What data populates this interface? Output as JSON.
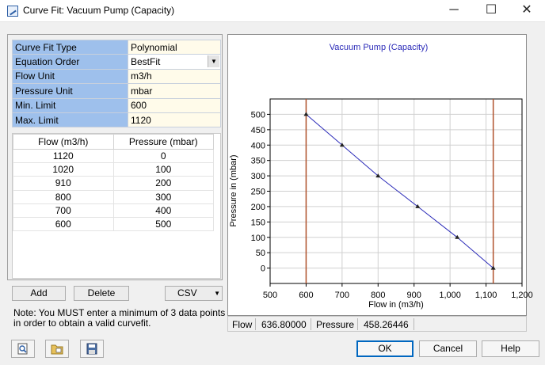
{
  "window": {
    "title": "Curve Fit: Vacuum Pump (Capacity)",
    "minimize_glyph": "─",
    "maximize_glyph": "☐",
    "close_glyph": "✕"
  },
  "properties": [
    {
      "key": "Curve Fit Type",
      "value": "Polynomial"
    },
    {
      "key": "Equation Order",
      "value": "BestFit"
    },
    {
      "key": "Flow Unit",
      "value": "m3/h"
    },
    {
      "key": "Pressure Unit",
      "value": "mbar"
    },
    {
      "key": "Min. Limit",
      "value": "600"
    },
    {
      "key": "Max. Limit",
      "value": "1120"
    }
  ],
  "data_table": {
    "headers": [
      "Flow (m3/h)",
      "Pressure (mbar)"
    ],
    "rows": [
      [
        "1120",
        "0"
      ],
      [
        "1020",
        "100"
      ],
      [
        "910",
        "200"
      ],
      [
        "800",
        "300"
      ],
      [
        "700",
        "400"
      ],
      [
        "600",
        "500"
      ]
    ]
  },
  "buttons": {
    "add": "Add",
    "delete": "Delete",
    "csv": "CSV",
    "ok": "OK",
    "cancel": "Cancel",
    "help": "Help"
  },
  "note": "Note: You MUST enter a minimum of 3 data points in order to obtain a valid curvefit.",
  "readout": {
    "flow_label": "Flow",
    "flow_value": "636.80000",
    "pressure_label": "Pressure",
    "pressure_value": "458.26446"
  },
  "toolbar_icons": [
    "zoom-icon",
    "open-folder-icon",
    "save-disk-icon"
  ],
  "colors": {
    "property_key_bg": "#9ec0ec",
    "property_value_bg": "#fffbea",
    "curve": "#2a2ab8",
    "limit_line": "#b0522c",
    "chart_title": "#2a2ab8",
    "default_button_border": "#0067c0"
  },
  "chart_data": {
    "type": "line",
    "title": "Vacuum Pump (Capacity)",
    "xlabel": "Flow in (m3/h)",
    "ylabel": "Pressure in (mbar)",
    "xlim": [
      500,
      1200
    ],
    "ylim": [
      -50,
      550
    ],
    "x_ticks": [
      500,
      600,
      700,
      800,
      900,
      1000,
      1100,
      1200
    ],
    "x_tick_labels": [
      "500",
      "600",
      "700",
      "800",
      "900",
      "1,000",
      "1,100",
      "1,200"
    ],
    "y_ticks": [
      0,
      50,
      100,
      150,
      200,
      250,
      300,
      350,
      400,
      450,
      500
    ],
    "y_tick_labels": [
      "0",
      "50",
      "100",
      "150",
      "200",
      "250",
      "300",
      "350",
      "400",
      "450",
      "500"
    ],
    "grid": true,
    "series": [
      {
        "x": [
          600,
          700,
          800,
          910,
          1020,
          1120
        ],
        "y": [
          500,
          400,
          300,
          200,
          100,
          0
        ]
      }
    ],
    "limit_lines": [
      600,
      1120
    ]
  }
}
